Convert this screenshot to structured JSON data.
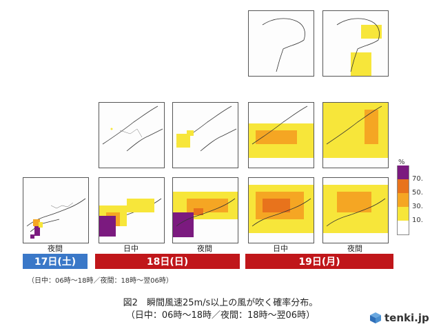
{
  "panel_labels": {
    "night": "夜間",
    "day": "日中"
  },
  "days": [
    {
      "label": "17日(土)",
      "color": "#3a78c8"
    },
    {
      "label": "18日(日)",
      "color": "#c0161a"
    },
    {
      "label": "19日(月)",
      "color": "#c0161a"
    }
  ],
  "legend": {
    "unit": "%",
    "ticks": [
      "70.",
      "50.",
      "30.",
      "10."
    ],
    "colors": [
      "#7b1a7f",
      "#e8731c",
      "#f5a623",
      "#f7e63a",
      "#ffffff"
    ]
  },
  "note": "（日中：06時～18時／夜間：18時～翌06時）",
  "caption": {
    "line1": "図2　瞬間風速25m/s以上の風が吹く確率分布。",
    "line2": "（日中：06時～18時／夜間：18時～翌06時）"
  },
  "logo": {
    "text": "tenki.jp",
    "icon": "tenki-cube-icon"
  }
}
